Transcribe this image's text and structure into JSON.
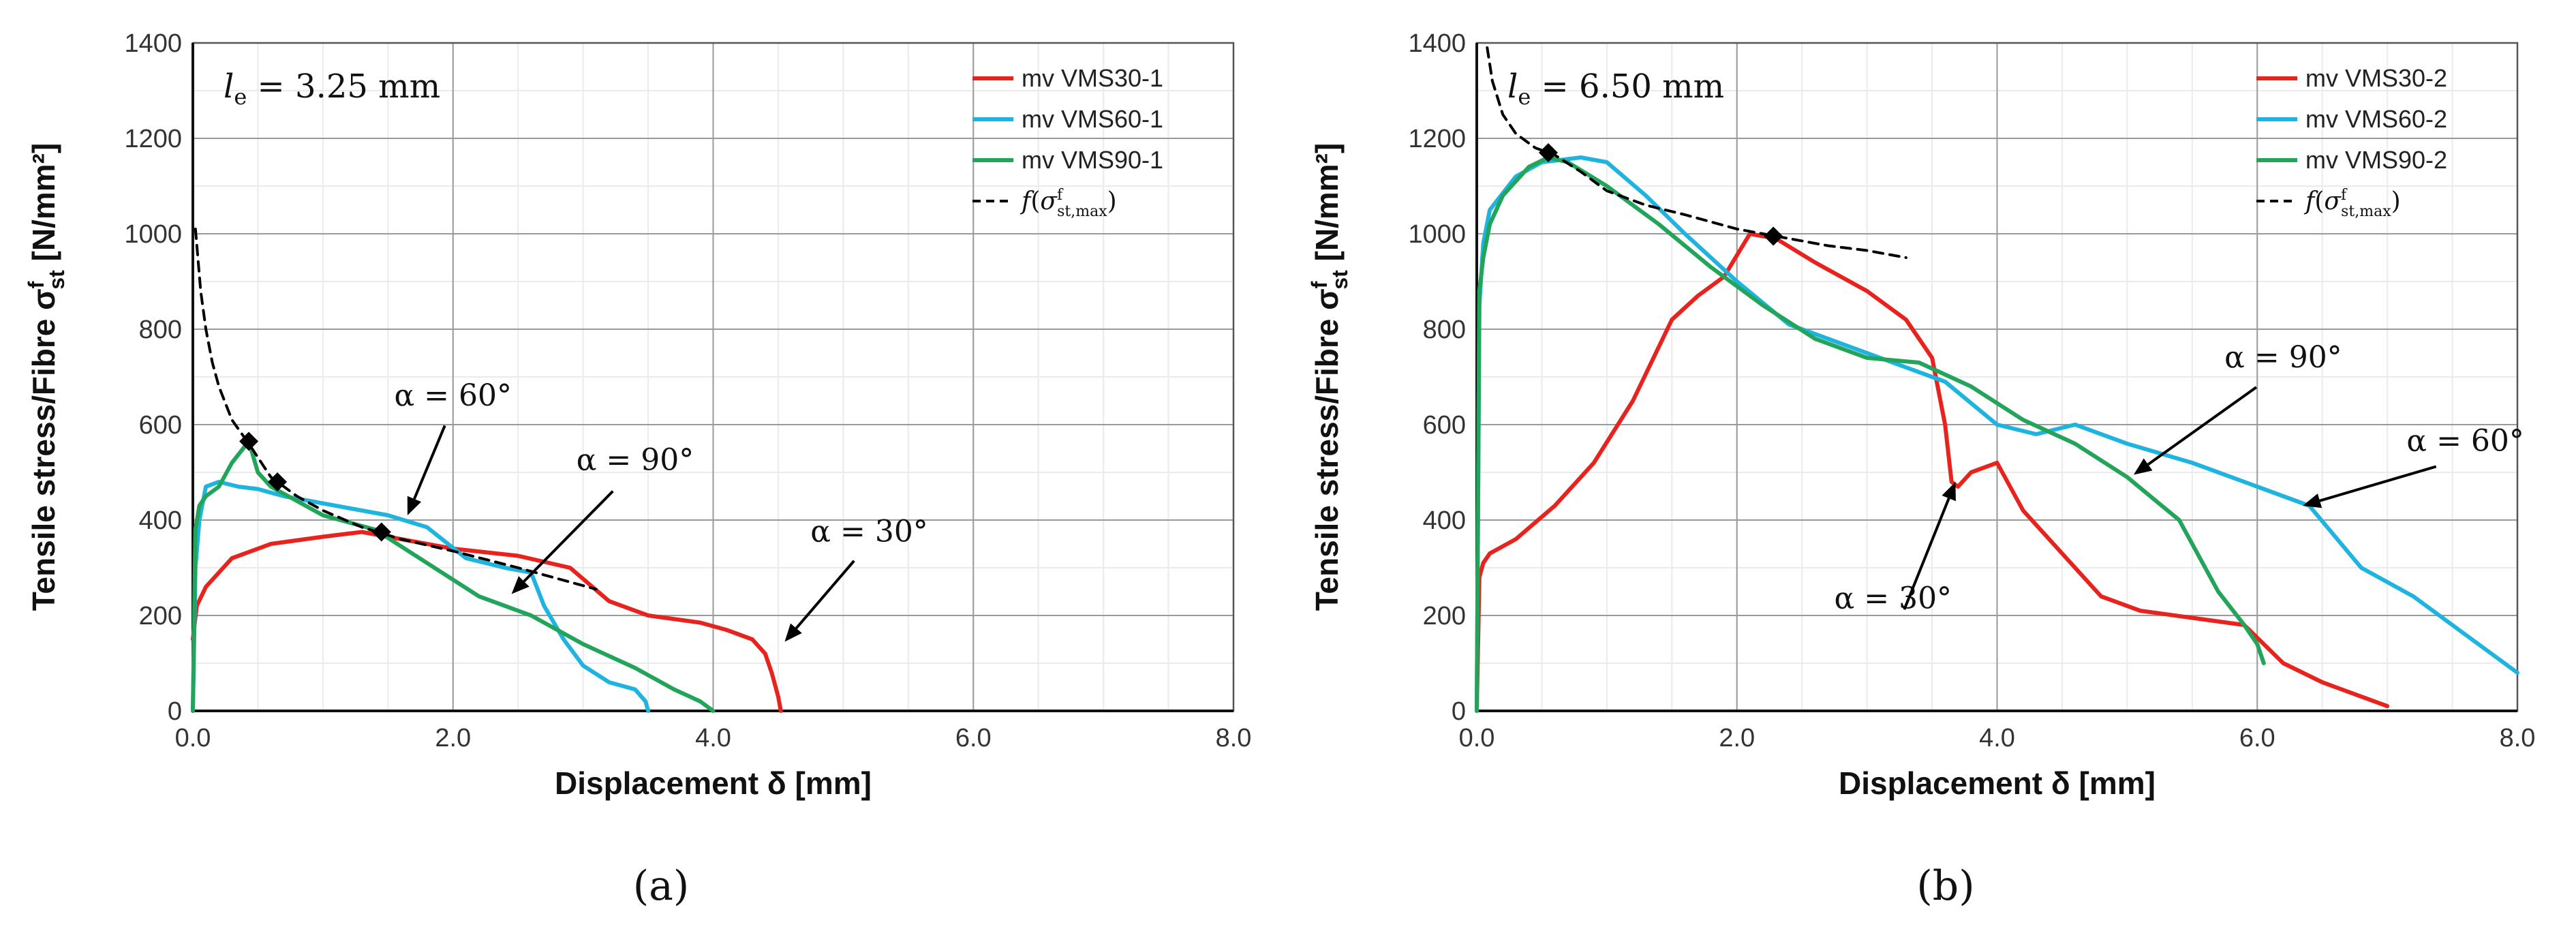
{
  "chart_data": [
    {
      "type": "line",
      "panel": "a",
      "caption": "(a)",
      "le_label": "3.25 mm",
      "xlabel": "Displacement δ [mm]",
      "ylabel": "Tensile stress/Fibre σ",
      "ylabel_sup": "f",
      "ylabel_sub": "st",
      "ylabel_unit": "[N/mm²]",
      "xlim": [
        0,
        8
      ],
      "ylim": [
        0,
        1400
      ],
      "xticks": [
        0,
        2,
        4,
        6,
        8
      ],
      "xtick_labels": [
        "0.0",
        "2.0",
        "4.0",
        "6.0",
        "8.0"
      ],
      "yticks": [
        0,
        200,
        400,
        600,
        800,
        1000,
        1200,
        1400
      ],
      "ytick_labels": [
        "0",
        "200",
        "400",
        "600",
        "800",
        "1000",
        "1200",
        "1400"
      ],
      "series": [
        {
          "name": "mv VMS30-1",
          "color": "#e8231d",
          "x": [
            0,
            0.03,
            0.1,
            0.3,
            0.6,
            1.0,
            1.3,
            1.6,
            2.0,
            2.5,
            2.9,
            3.2,
            3.5,
            3.9,
            4.1,
            4.3,
            4.4,
            4.45,
            4.5,
            4.52
          ],
          "y": [
            150,
            220,
            260,
            320,
            350,
            365,
            375,
            360,
            340,
            325,
            300,
            230,
            200,
            185,
            170,
            150,
            120,
            80,
            30,
            0
          ]
        },
        {
          "name": "mv VMS60-1",
          "color": "#1fb4e0",
          "x": [
            0,
            0.02,
            0.05,
            0.1,
            0.2,
            0.35,
            0.5,
            0.7,
            0.9,
            1.2,
            1.5,
            1.8,
            2.1,
            2.4,
            2.6,
            2.7,
            2.85,
            3.0,
            3.2,
            3.4,
            3.48,
            3.5
          ],
          "y": [
            0,
            300,
            400,
            470,
            480,
            470,
            465,
            450,
            440,
            425,
            410,
            385,
            320,
            300,
            290,
            220,
            150,
            95,
            60,
            45,
            20,
            0
          ]
        },
        {
          "name": "mv VMS90-1",
          "color": "#22a55b",
          "x": [
            0,
            0.02,
            0.05,
            0.1,
            0.2,
            0.3,
            0.43,
            0.5,
            0.6,
            0.8,
            1.0,
            1.4,
            1.8,
            2.2,
            2.6,
            3.0,
            3.4,
            3.7,
            3.9,
            4.0
          ],
          "y": [
            0,
            380,
            430,
            450,
            470,
            520,
            565,
            500,
            470,
            440,
            410,
            380,
            310,
            240,
            200,
            140,
            90,
            45,
            20,
            0
          ]
        },
        {
          "name": "f(σst,max)",
          "color": "#000000",
          "dashed": true,
          "x": [
            0.02,
            0.06,
            0.1,
            0.15,
            0.2,
            0.3,
            0.43,
            0.6,
            0.8,
            1.0,
            1.3,
            1.6,
            2.0,
            2.5,
            3.1
          ],
          "y": [
            1010,
            880,
            800,
            730,
            680,
            610,
            560,
            490,
            450,
            420,
            385,
            360,
            335,
            300,
            255
          ]
        }
      ],
      "legend": [
        "mv VMS30-1",
        "mv VMS60-1",
        "mv VMS90-1"
      ],
      "legend_fn": "f",
      "legend_fn_sigma": "σ",
      "legend_fn_sup": "f",
      "legend_fn_sub": "st,max",
      "legend_position": "top-right",
      "markers": [
        {
          "x": 0.43,
          "y": 565
        },
        {
          "x": 0.65,
          "y": 480
        },
        {
          "x": 1.45,
          "y": 375
        }
      ],
      "annotations": [
        {
          "text": "α = 60°",
          "tx": 2.0,
          "ty": 640,
          "ax": 1.65,
          "ay": 410
        },
        {
          "text": "α = 90°",
          "tx": 3.4,
          "ty": 505,
          "ax": 2.45,
          "ay": 245
        },
        {
          "text": "α = 30°",
          "tx": 5.2,
          "ty": 355,
          "ax": 4.55,
          "ay": 145
        }
      ]
    },
    {
      "type": "line",
      "panel": "b",
      "caption": "(b)",
      "le_label": "6.50 mm",
      "xlabel": "Displacement δ [mm]",
      "ylabel": "Tensile stress/Fibre σ",
      "ylabel_sup": "f",
      "ylabel_sub": "st",
      "ylabel_unit": "[N/mm²]",
      "xlim": [
        0,
        8
      ],
      "ylim": [
        0,
        1400
      ],
      "xticks": [
        0,
        2,
        4,
        6,
        8
      ],
      "xtick_labels": [
        "0.0",
        "2.0",
        "4.0",
        "6.0",
        "8.0"
      ],
      "yticks": [
        0,
        200,
        400,
        600,
        800,
        1000,
        1200,
        1400
      ],
      "ytick_labels": [
        "0",
        "200",
        "400",
        "600",
        "800",
        "1000",
        "1200",
        "1400"
      ],
      "series": [
        {
          "name": "mv VMS30-2",
          "color": "#e8231d",
          "x": [
            0,
            0.02,
            0.05,
            0.1,
            0.3,
            0.6,
            0.9,
            1.2,
            1.5,
            1.7,
            1.9,
            2.1,
            2.3,
            2.6,
            3.0,
            3.3,
            3.5,
            3.6,
            3.65,
            3.7,
            3.8,
            4.0,
            4.2,
            4.5,
            4.8,
            5.1,
            5.5,
            5.9,
            6.2,
            6.5,
            7.0
          ],
          "y": [
            0,
            280,
            310,
            330,
            360,
            430,
            520,
            650,
            820,
            870,
            910,
            1000,
            990,
            940,
            880,
            820,
            740,
            600,
            480,
            470,
            500,
            520,
            420,
            330,
            240,
            210,
            195,
            180,
            100,
            60,
            10
          ]
        },
        {
          "name": "mv VMS60-2",
          "color": "#1fb4e0",
          "x": [
            0,
            0.02,
            0.05,
            0.1,
            0.3,
            0.5,
            0.8,
            1.0,
            1.3,
            1.6,
            2.0,
            2.4,
            2.8,
            3.2,
            3.6,
            4.0,
            4.3,
            4.6,
            5.0,
            5.5,
            6.0,
            6.4,
            6.8,
            7.2,
            7.6,
            7.9,
            8.0
          ],
          "y": [
            0,
            850,
            980,
            1050,
            1120,
            1150,
            1160,
            1150,
            1080,
            1000,
            900,
            810,
            770,
            730,
            690,
            600,
            580,
            600,
            560,
            520,
            470,
            430,
            300,
            240,
            160,
            100,
            80
          ]
        },
        {
          "name": "mv VMS90-2",
          "color": "#22a55b",
          "x": [
            0,
            0.02,
            0.05,
            0.1,
            0.2,
            0.4,
            0.55,
            0.7,
            1.0,
            1.4,
            1.8,
            2.2,
            2.6,
            3.0,
            3.4,
            3.8,
            4.2,
            4.6,
            5.0,
            5.4,
            5.7,
            5.9,
            6.0,
            6.05
          ],
          "y": [
            0,
            880,
            950,
            1020,
            1080,
            1140,
            1160,
            1150,
            1100,
            1020,
            930,
            850,
            780,
            740,
            730,
            680,
            610,
            560,
            490,
            400,
            250,
            180,
            140,
            100
          ]
        },
        {
          "name": "f(σst,max)",
          "color": "#000000",
          "dashed": true,
          "x": [
            0.08,
            0.12,
            0.2,
            0.3,
            0.45,
            0.6,
            0.8,
            1.0,
            1.3,
            1.6,
            2.0,
            2.3,
            2.7,
            3.0,
            3.3
          ],
          "y": [
            1390,
            1320,
            1250,
            1210,
            1180,
            1165,
            1130,
            1090,
            1060,
            1040,
            1010,
            995,
            975,
            965,
            950
          ]
        }
      ],
      "legend": [
        "mv VMS30-2",
        "mv VMS60-2",
        "mv VMS90-2"
      ],
      "legend_fn": "f",
      "legend_fn_sigma": "σ",
      "legend_fn_sup": "f",
      "legend_fn_sub": "st,max",
      "legend_position": "top-right",
      "markers": [
        {
          "x": 0.55,
          "y": 1170
        },
        {
          "x": 2.28,
          "y": 995
        }
      ],
      "annotations": [
        {
          "text": "α = 90°",
          "tx": 6.2,
          "ty": 720,
          "ax": 5.05,
          "ay": 495
        },
        {
          "text": "α = 60°",
          "tx": 7.6,
          "ty": 545,
          "ax": 6.35,
          "ay": 430
        },
        {
          "text": "α = 30°",
          "tx": 3.2,
          "ty": 215,
          "ax": 3.68,
          "ay": 480
        }
      ]
    }
  ]
}
